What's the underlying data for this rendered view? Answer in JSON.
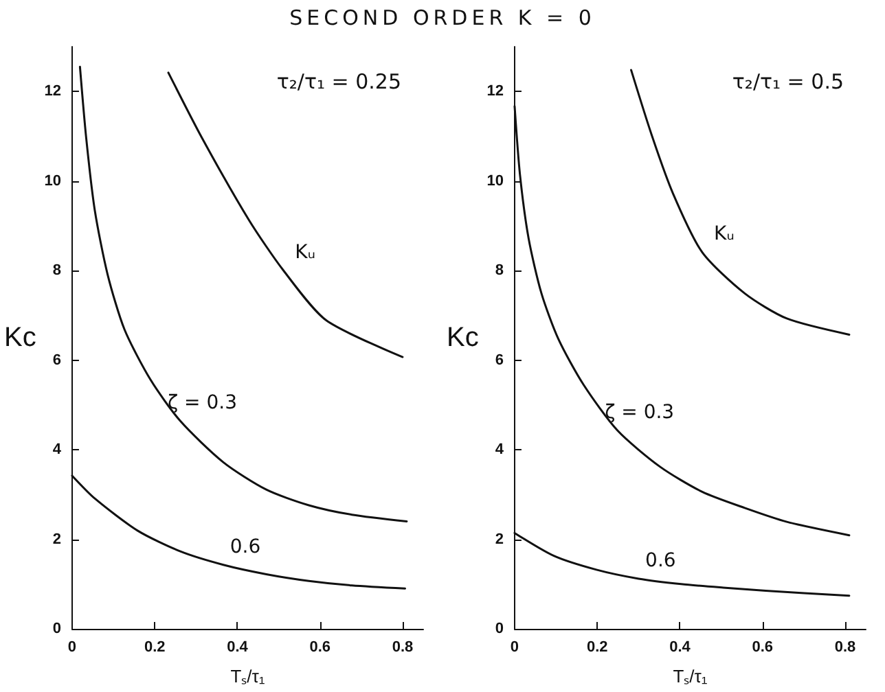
{
  "chart_data": [
    {
      "type": "line",
      "title": "SECOND ORDER   K = 0",
      "xlabel": "Tₛ/τ₁",
      "ylabel": "Kc",
      "annotations": [
        "τ₂/τ₁ = 0.25"
      ],
      "xlim": [
        0,
        0.85
      ],
      "xticks": [
        0,
        0.2,
        0.4,
        0.6,
        0.8
      ],
      "ylim": [
        0,
        13
      ],
      "yticks": [
        0,
        2,
        4,
        6,
        8,
        10,
        12
      ],
      "grid": false,
      "legend": false,
      "marker": "none",
      "line_style": "solid",
      "series": [
        {
          "name": "Kᵤ",
          "color": "#111111",
          "x": [
            0.233,
            0.314,
            0.428,
            0.511,
            0.615,
            0.8
          ],
          "values": [
            12.42,
            10.97,
            9.13,
            8.01,
            6.89,
            6.07
          ]
        },
        {
          "name": "ζ = 0.3",
          "color": "#111111",
          "x": [
            0.019,
            0.034,
            0.055,
            0.086,
            0.127,
            0.19,
            0.262,
            0.366,
            0.47,
            0.573,
            0.677,
            0.81
          ],
          "values": [
            12.55,
            10.97,
            9.34,
            7.91,
            6.68,
            5.56,
            4.64,
            3.72,
            3.11,
            2.76,
            2.55,
            2.4
          ]
        },
        {
          "name": "0.6",
          "color": "#111111",
          "x": [
            0,
            0.055,
            0.159,
            0.262,
            0.366,
            0.47,
            0.573,
            0.677,
            0.806
          ],
          "values": [
            3.42,
            2.91,
            2.19,
            1.73,
            1.43,
            1.22,
            1.07,
            0.97,
            0.9
          ]
        }
      ]
    },
    {
      "type": "line",
      "xlabel": "Tₛ/τ₁",
      "ylabel": "Kc",
      "annotations": [
        "τ₂/τ₁ = 0.5"
      ],
      "xlim": [
        0,
        0.85
      ],
      "xticks": [
        0,
        0.2,
        0.4,
        0.6,
        0.8
      ],
      "ylim": [
        0,
        13
      ],
      "yticks": [
        0,
        2,
        4,
        6,
        8,
        10,
        12
      ],
      "grid": false,
      "legend": false,
      "marker": "none",
      "line_style": "solid",
      "series": [
        {
          "name": "Kᵤ",
          "color": "#111111",
          "x": [
            0.282,
            0.331,
            0.383,
            0.454,
            0.557,
            0.659,
            0.81
          ],
          "values": [
            12.48,
            11.05,
            9.73,
            8.41,
            7.49,
            6.93,
            6.57
          ]
        },
        {
          "name": "ζ = 0.3",
          "color": "#111111",
          "x": [
            0,
            0.013,
            0.034,
            0.065,
            0.106,
            0.167,
            0.249,
            0.352,
            0.454,
            0.557,
            0.659,
            0.81
          ],
          "values": [
            11.67,
            10.14,
            8.71,
            7.49,
            6.47,
            5.45,
            4.43,
            3.62,
            3.06,
            2.7,
            2.39,
            2.09
          ]
        },
        {
          "name": "0.6",
          "color": "#111111",
          "x": [
            0,
            0.095,
            0.198,
            0.3,
            0.403,
            0.505,
            0.608,
            0.81
          ],
          "values": [
            2.14,
            1.63,
            1.32,
            1.12,
            1.0,
            0.92,
            0.85,
            0.74
          ]
        }
      ]
    }
  ]
}
